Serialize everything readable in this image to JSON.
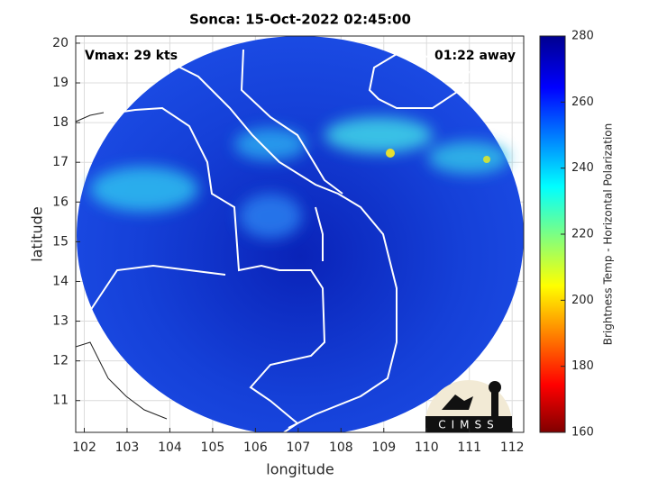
{
  "chart_data": {
    "type": "map",
    "title": "Sonca: 15-Oct-2022 02:45:00",
    "xlabel": "longitude",
    "ylabel": "latitude",
    "annotations": [
      "Vmax: 29 kts",
      "01:22 away"
    ],
    "xlim": [
      101.8,
      112.27
    ],
    "xticks": [
      102,
      103,
      104,
      105,
      106,
      107,
      108,
      109,
      110,
      111,
      112
    ],
    "ylim": [
      10.2,
      20.18
    ],
    "yticks": [
      11,
      12,
      13,
      14,
      15,
      16,
      17,
      18,
      19,
      20
    ],
    "grid": true,
    "colorbar": {
      "label": "Brightness Temp - Horizontal Polarization",
      "lim": [
        160,
        280
      ],
      "ticks": [
        160,
        180,
        200,
        220,
        240,
        260,
        280
      ]
    },
    "logo": "CIMSS"
  }
}
